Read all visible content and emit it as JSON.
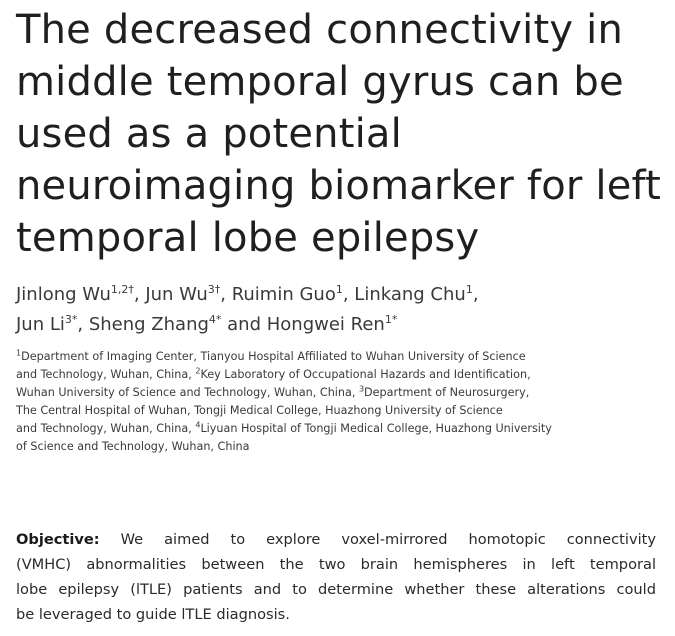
{
  "title_lines": [
    "The decreased connectivity in",
    "middle temporal gyrus can be",
    "used as a potential",
    "neuroimaging biomarker for left",
    "temporal lobe epilepsy"
  ],
  "authors": [
    {
      "name": "Jinlong Wu",
      "sup": "1,2†",
      "sep": ", "
    },
    {
      "name": "Jun Wu",
      "sup": "3†",
      "sep": ", "
    },
    {
      "name": "Ruimin Guo",
      "sup": "1",
      "sep": ", "
    },
    {
      "name": "Linkang Chu",
      "sup": "1",
      "sep": ","
    },
    {
      "name": "Jun Li",
      "sup": "3*",
      "sep": ", "
    },
    {
      "name": "Sheng Zhang",
      "sup": "4*",
      "sep": " and "
    },
    {
      "name": "Hongwei Ren",
      "sup": "1*",
      "sep": ""
    }
  ],
  "affiliation_lines": [
    {
      "sup": "1",
      "text": "Department of Imaging Center, Tianyou Hospital Affiliated to Wuhan University of Science"
    },
    {
      "pre": "and Technology, Wuhan, China, ",
      "sup": "2",
      "text": "Key Laboratory of Occupational Hazards and Identification,"
    },
    {
      "pre": "Wuhan University of Science and Technology, Wuhan, China, ",
      "sup": "3",
      "text": "Department of Neurosurgery,"
    },
    {
      "pre": "",
      "sup": "",
      "text": "The Central Hospital of Wuhan, Tongji Medical College, Huazhong University of Science"
    },
    {
      "pre": "and Technology, Wuhan, China, ",
      "sup": "4",
      "text": "Liyuan Hospital of Tongji Medical College, Huazhong University"
    },
    {
      "pre": "",
      "sup": "",
      "text": "of Science and Technology, Wuhan, China"
    }
  ],
  "abstract": {
    "label": "Objective:",
    "lines": [
      "We aimed to explore voxel-mirrored homotopic connectivity",
      "(VMHC) abnormalities between the two brain hemispheres in left temporal",
      "lobe epilepsy (lTLE) patients and to determine whether these alterations could",
      "be leveraged to guide lTLE diagnosis."
    ]
  }
}
